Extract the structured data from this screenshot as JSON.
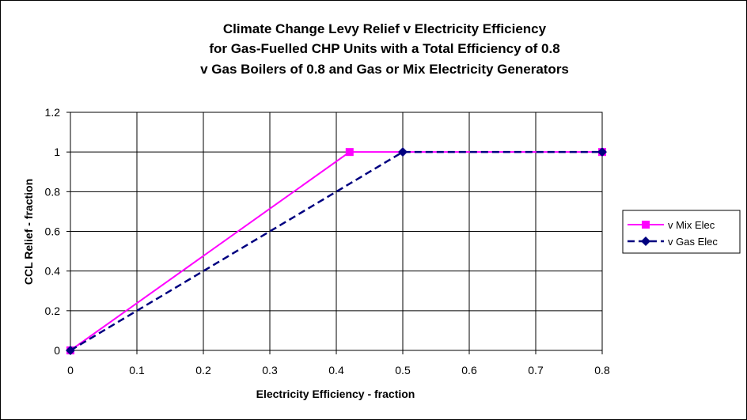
{
  "chart_data": {
    "type": "line",
    "title": [
      "Climate Change Levy Relief v Electricity Efficiency",
      "for Gas-Fuelled CHP Units with a Total Efficiency of 0.8",
      "v Gas Boilers of 0.8 and Gas or Mix Electricity Generators"
    ],
    "xlabel": "Electricity Efficiency - fraction",
    "ylabel": "CCL Relief - fraction",
    "xlim": [
      0,
      0.8
    ],
    "ylim": [
      0,
      1.2
    ],
    "xticks": [
      "0",
      "0.1",
      "0.2",
      "0.3",
      "0.4",
      "0.5",
      "0.6",
      "0.7",
      "0.8"
    ],
    "yticks": [
      "0",
      "0.2",
      "0.4",
      "0.6",
      "0.8",
      "1",
      "1.2"
    ],
    "grid": true,
    "legend_position": "right",
    "series": [
      {
        "name": "v Mix Elec",
        "color": "#ff00ff",
        "line_style": "solid",
        "marker": "square",
        "points": [
          [
            0,
            0
          ],
          [
            0.42,
            1
          ],
          [
            0.8,
            1
          ]
        ]
      },
      {
        "name": "v Gas Elec",
        "color": "#000080",
        "line_style": "dashed",
        "marker": "diamond",
        "points": [
          [
            0,
            0
          ],
          [
            0.5,
            1
          ],
          [
            0.8,
            1
          ]
        ]
      }
    ]
  }
}
